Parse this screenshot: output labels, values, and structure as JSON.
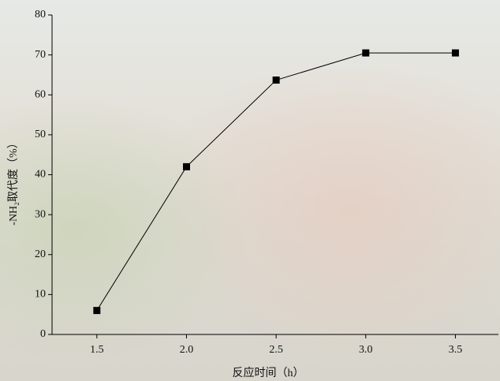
{
  "chart_data": {
    "type": "line",
    "x_label": "反应时间（h）",
    "y_label": "-NH₂取代度（%）",
    "x": [
      1.5,
      2.0,
      2.5,
      3.0,
      3.5
    ],
    "series": [
      {
        "color": "#000000",
        "values": [
          6,
          42,
          63.7,
          70.5,
          70.5
        ]
      }
    ],
    "xlim": [
      1.25,
      3.74
    ],
    "xticks": [
      1.5,
      {
        "value": 2,
        "label": "2.0"
      },
      2.5,
      {
        "value": 3,
        "label": "3.0"
      },
      3.5
    ],
    "ylim": [
      0,
      80
    ],
    "yticks": [
      0,
      10,
      20,
      30,
      40,
      50,
      60,
      70,
      80
    ],
    "grid": false
  }
}
